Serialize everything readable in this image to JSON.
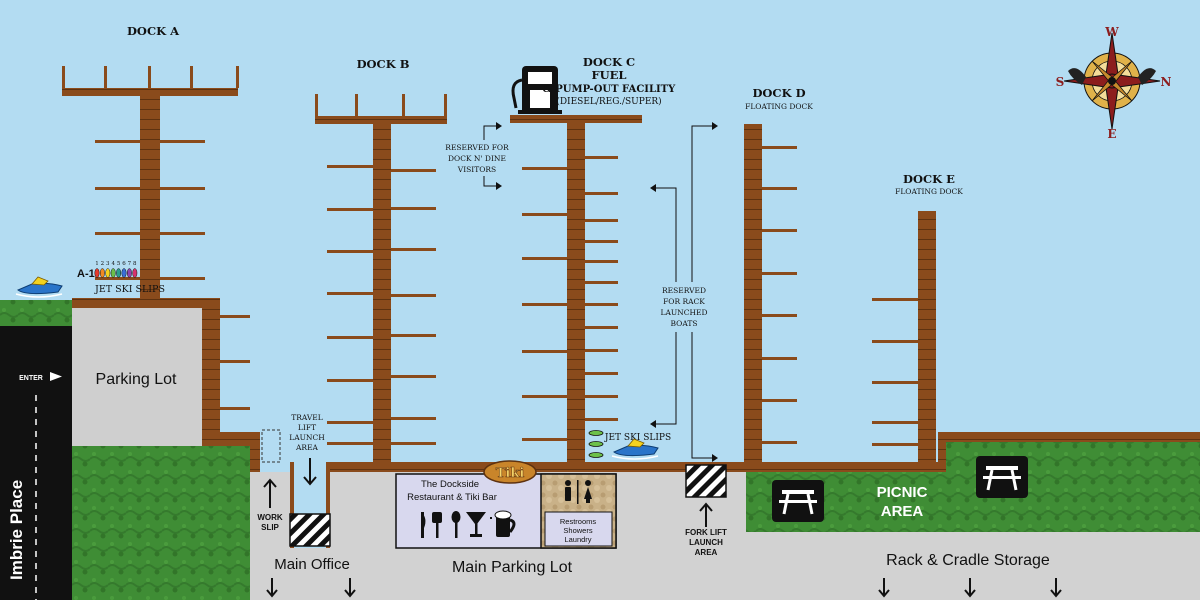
{
  "docks": {
    "a": {
      "label": "DOCK A"
    },
    "b": {
      "label": "DOCK B"
    },
    "c": {
      "label": "DOCK C",
      "fuel": "FUEL",
      "pumpout": "& PUMP-OUT FACILITY",
      "grades": "(DIESEL/REG./SUPER)"
    },
    "d": {
      "label": "DOCK D",
      "sub": "FLOATING DOCK"
    },
    "e": {
      "label": "DOCK E",
      "sub": "FLOATING DOCK"
    }
  },
  "slips": {
    "a1": "A-1",
    "jetski_numbers": [
      "1",
      "2",
      "3",
      "4",
      "5",
      "6",
      "7",
      "8"
    ],
    "jetski_colors": [
      "#e63a2c",
      "#f08a24",
      "#f4d21f",
      "#6cc04a",
      "#2a9d8f",
      "#3a6fd8",
      "#8e44ad",
      "#d6336c"
    ],
    "jetski_a": "JET SKI SLIPS",
    "jetski_c": "JET SKI SLIPS"
  },
  "reserved": {
    "dine": [
      "RESERVED FOR",
      "DOCK N' DINE",
      "VISITORS"
    ],
    "rack": [
      "RESERVED",
      "FOR RACK",
      "LAUNCHED",
      "BOATS"
    ]
  },
  "land": {
    "street": "Imbrie Place",
    "enter": "ENTER",
    "parking": "Parking Lot",
    "main_office": "Main Office",
    "main_parking": "Main Parking  Lot",
    "rack_storage": "Rack & Cradle Storage",
    "picnic": [
      "PICNIC",
      "AREA"
    ],
    "work_slip": [
      "WORK",
      "SLIP"
    ],
    "travel_lift": [
      "TRAVEL",
      "LIFT",
      "LAUNCH",
      "AREA"
    ],
    "fork_lift": [
      "FORK LIFT",
      "LAUNCH",
      "AREA"
    ]
  },
  "restaurant": {
    "name": [
      "The Dockside",
      "Restaurant & Tiki Bar"
    ],
    "logo": "Tiki",
    "restrooms": [
      "Restrooms",
      "Showers",
      "Laundry"
    ],
    "icons": [
      "knife-icon",
      "fork-icon",
      "spoon-icon",
      "cocktail-glass-icon",
      "wine-glass-icon",
      "beer-mug-icon"
    ]
  },
  "compass": {
    "n": "N",
    "s": "S",
    "e": "E",
    "w": "W"
  },
  "colors": {
    "water": "#b3dcf2",
    "dock": "#8a4b1c",
    "dock_dark": "#5e3210",
    "grass": "#3e8b34",
    "concrete": "#cfcfcf",
    "road": "#111111",
    "restaurant": "#d8d8ee",
    "compass_red": "#8c1d1d",
    "compass_gold": "#e0b24a"
  }
}
